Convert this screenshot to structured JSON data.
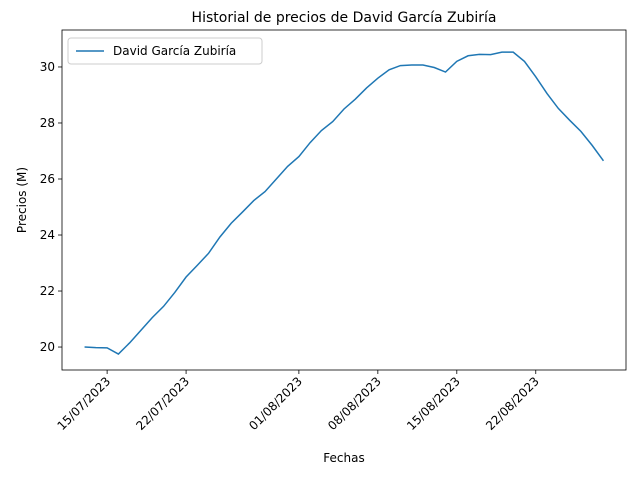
{
  "chart_data": {
    "type": "line",
    "title": "Historial de precios de David García Zubiría",
    "xlabel": "Fechas",
    "ylabel": "Precios (M)",
    "x": [
      "13/07/2023",
      "14/07/2023",
      "15/07/2023",
      "16/07/2023",
      "17/07/2023",
      "18/07/2023",
      "19/07/2023",
      "20/07/2023",
      "21/07/2023",
      "22/07/2023",
      "23/07/2023",
      "24/07/2023",
      "25/07/2023",
      "26/07/2023",
      "27/07/2023",
      "28/07/2023",
      "29/07/2023",
      "30/07/2023",
      "31/07/2023",
      "01/08/2023",
      "02/08/2023",
      "03/08/2023",
      "04/08/2023",
      "05/08/2023",
      "06/08/2023",
      "07/08/2023",
      "08/08/2023",
      "09/08/2023",
      "10/08/2023",
      "11/08/2023",
      "12/08/2023",
      "13/08/2023",
      "14/08/2023",
      "15/08/2023",
      "16/08/2023",
      "17/08/2023",
      "18/08/2023",
      "19/08/2023",
      "20/08/2023",
      "21/08/2023",
      "22/08/2023",
      "23/08/2023",
      "24/08/2023",
      "25/08/2023",
      "26/08/2023",
      "27/08/2023",
      "28/08/2023"
    ],
    "series": [
      {
        "name": "David García Zubiría",
        "color": "#1f77b4",
        "values": [
          20.0,
          19.98,
          19.97,
          19.75,
          20.15,
          20.6,
          21.05,
          21.45,
          21.95,
          22.5,
          22.92,
          23.35,
          23.93,
          24.42,
          24.82,
          25.23,
          25.55,
          26.0,
          26.45,
          26.8,
          27.3,
          27.73,
          28.05,
          28.5,
          28.85,
          29.25,
          29.6,
          29.9,
          30.05,
          30.07,
          30.07,
          29.98,
          29.82,
          30.2,
          30.4,
          30.45,
          30.44,
          30.53,
          30.53,
          30.2,
          29.65,
          29.05,
          28.52,
          28.1,
          27.7,
          27.2,
          26.65
        ]
      }
    ],
    "xlim": [
      "11/07/2023",
      "30/08/2023"
    ],
    "xticks": [
      "15/07/2023",
      "22/07/2023",
      "01/08/2023",
      "08/08/2023",
      "15/08/2023",
      "22/08/2023"
    ],
    "ylim": [
      19.18,
      31.32
    ],
    "yticks": [
      20,
      22,
      24,
      26,
      28,
      30
    ],
    "legend": "upper-left",
    "grid": false
  }
}
